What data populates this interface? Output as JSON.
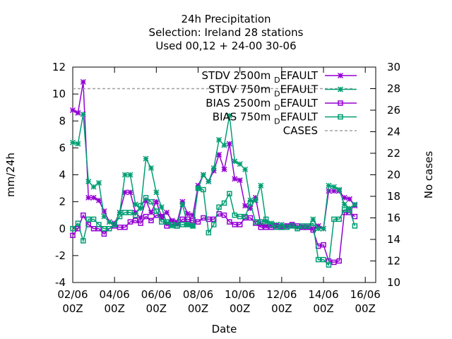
{
  "chart_data": {
    "type": "line",
    "title_lines": [
      "24h Precipitation",
      "Selection: Ireland      28 stations",
      "Used  00,12  + 24-00 30-06"
    ],
    "xlabel": "Date",
    "ylabel": "mm/24h",
    "y2label": "No cases",
    "xlim": [
      0,
      14.5
    ],
    "ylim": [
      -4,
      12
    ],
    "y2lim": [
      10,
      30
    ],
    "x_ticks": [
      {
        "v": 0,
        "l1": "02/06",
        "l2": "00Z"
      },
      {
        "v": 2,
        "l1": "04/06",
        "l2": "00Z"
      },
      {
        "v": 4,
        "l1": "06/06",
        "l2": "00Z"
      },
      {
        "v": 6,
        "l1": "08/06",
        "l2": "00Z"
      },
      {
        "v": 8,
        "l1": "10/06",
        "l2": "00Z"
      },
      {
        "v": 10,
        "l1": "12/06",
        "l2": "00Z"
      },
      {
        "v": 12,
        "l1": "14/06",
        "l2": "00Z"
      },
      {
        "v": 14,
        "l1": "16/06",
        "l2": "00Z"
      }
    ],
    "y_ticks": [
      -4,
      -2,
      0,
      2,
      4,
      6,
      8,
      10,
      12
    ],
    "y2_ticks": [
      10,
      12,
      14,
      16,
      18,
      20,
      22,
      24,
      26,
      28,
      30
    ],
    "legend_position": "top-right",
    "series": [
      {
        "name": "STDV 2500m_DEFAULT",
        "legend_main": "STDV 2500m",
        "legend_sub": "D",
        "legend_tail": "EFAULT",
        "color": "#9400d3",
        "marker": "star",
        "axis": "y",
        "x": [
          0,
          0.25,
          0.5,
          0.75,
          1,
          1.25,
          1.5,
          1.75,
          2,
          2.25,
          2.5,
          2.75,
          3,
          3.25,
          3.5,
          3.75,
          4,
          4.25,
          4.5,
          4.75,
          5,
          5.25,
          5.5,
          5.75,
          6,
          6.25,
          6.5,
          6.75,
          7,
          7.25,
          7.5,
          7.75,
          8,
          8.25,
          8.5,
          8.75,
          9,
          9.25,
          9.5,
          9.75,
          10,
          10.25,
          10.5,
          10.75,
          11,
          11.25,
          11.5,
          11.75,
          12,
          12.25,
          12.5,
          12.75,
          13,
          13.25,
          13.5
        ],
        "y": [
          8.8,
          8.6,
          10.9,
          2.3,
          2.3,
          2.1,
          1.3,
          0.5,
          0.4,
          1.2,
          2.7,
          2.7,
          1.2,
          0.8,
          2.1,
          1.2,
          2.0,
          0.9,
          1.2,
          0.6,
          0.5,
          2.0,
          1.1,
          1.0,
          3.2,
          4.0,
          3.5,
          4.3,
          5.5,
          4.4,
          6.3,
          3.7,
          3.6,
          1.7,
          1.5,
          2.3,
          0.3,
          0.2,
          0.2,
          0.2,
          0.1,
          0.2,
          0.3,
          0.1,
          0.1,
          0.1,
          0.0,
          0.2,
          0.0,
          2.8,
          2.8,
          2.8,
          2.3,
          2.2,
          1.7
        ]
      },
      {
        "name": "STDV 750m_DEFAULT",
        "legend_main": "STDV 750m",
        "legend_sub": "D",
        "legend_tail": "EFAULT",
        "color": "#009e73",
        "marker": "star",
        "axis": "y",
        "x": [
          0,
          0.25,
          0.5,
          0.75,
          1,
          1.25,
          1.5,
          1.75,
          2,
          2.25,
          2.5,
          2.75,
          3,
          3.25,
          3.5,
          3.75,
          4,
          4.25,
          4.5,
          4.75,
          5,
          5.25,
          5.5,
          5.75,
          6,
          6.25,
          6.5,
          6.75,
          7,
          7.25,
          7.5,
          7.75,
          8,
          8.25,
          8.5,
          8.75,
          9,
          9.25,
          9.5,
          9.75,
          10,
          10.25,
          10.5,
          10.75,
          11,
          11.25,
          11.5,
          11.75,
          12,
          12.25,
          12.5,
          12.75,
          13,
          13.25,
          13.5
        ],
        "y": [
          6.4,
          6.3,
          8.5,
          3.5,
          3.1,
          3.4,
          0.9,
          0.5,
          0.3,
          1.2,
          4.0,
          4.0,
          1.8,
          1.5,
          5.2,
          4.5,
          2.7,
          1.6,
          0.4,
          0.2,
          0.3,
          1.8,
          0.3,
          0.2,
          3.0,
          4.0,
          3.5,
          4.5,
          6.6,
          6.2,
          8.4,
          5.0,
          4.8,
          4.4,
          2.1,
          2.1,
          3.2,
          0.5,
          0.4,
          0.3,
          0.3,
          0.2,
          0.2,
          0.1,
          0.1,
          0.1,
          0.7,
          0.0,
          0.0,
          3.2,
          3.1,
          2.9,
          1.8,
          1.5,
          1.8
        ]
      },
      {
        "name": "BIAS 2500m_DEFAULT",
        "legend_main": "BIAS 2500m",
        "legend_sub": "D",
        "legend_tail": "EFAULT",
        "color": "#9400d3",
        "marker": "square",
        "axis": "y",
        "x": [
          0,
          0.25,
          0.5,
          0.75,
          1,
          1.25,
          1.5,
          1.75,
          2,
          2.25,
          2.5,
          2.75,
          3,
          3.25,
          3.5,
          3.75,
          4,
          4.25,
          4.5,
          4.75,
          5,
          5.25,
          5.5,
          5.75,
          6,
          6.25,
          6.5,
          6.75,
          7,
          7.25,
          7.5,
          7.75,
          8,
          8.25,
          8.5,
          8.75,
          9,
          9.25,
          9.5,
          9.75,
          10,
          10.25,
          10.5,
          10.75,
          11,
          11.25,
          11.5,
          11.75,
          12,
          12.25,
          12.5,
          12.75,
          13,
          13.25,
          13.5
        ],
        "y": [
          -0.5,
          0.0,
          1.0,
          0.3,
          0.0,
          0.0,
          -0.4,
          0.0,
          0.2,
          0.1,
          0.1,
          0.5,
          0.6,
          0.4,
          0.9,
          0.6,
          1.0,
          0.9,
          0.2,
          0.5,
          0.2,
          0.7,
          0.7,
          0.6,
          0.5,
          0.8,
          0.7,
          0.7,
          1.1,
          1.0,
          0.5,
          0.3,
          0.3,
          0.8,
          0.8,
          0.4,
          0.1,
          0.1,
          0.1,
          0.2,
          0.1,
          0.2,
          0.3,
          0.2,
          0.1,
          0.1,
          -0.1,
          -1.3,
          -1.2,
          -2.4,
          -2.5,
          -2.4,
          1.2,
          1.2,
          0.9
        ]
      },
      {
        "name": "BIAS 750m_DEFAULT",
        "legend_main": "BIAS 750m",
        "legend_sub": "D",
        "legend_tail": "EFAULT",
        "color": "#009e73",
        "marker": "square",
        "axis": "y",
        "x": [
          0,
          0.25,
          0.5,
          0.75,
          1,
          1.25,
          1.5,
          1.75,
          2,
          2.25,
          2.5,
          2.75,
          3,
          3.25,
          3.5,
          3.75,
          4,
          4.25,
          4.5,
          4.75,
          5,
          5.25,
          5.5,
          5.75,
          6,
          6.25,
          6.5,
          6.75,
          7,
          7.25,
          7.5,
          7.75,
          8,
          8.25,
          8.5,
          8.75,
          9,
          9.25,
          9.5,
          9.75,
          10,
          10.25,
          10.5,
          10.75,
          11,
          11.25,
          11.5,
          11.75,
          12,
          12.25,
          12.5,
          12.75,
          13,
          13.25,
          13.5
        ],
        "y": [
          0.0,
          0.4,
          -0.9,
          0.7,
          0.7,
          0.3,
          0.0,
          0.0,
          0.3,
          0.9,
          1.2,
          1.2,
          1.0,
          1.7,
          2.3,
          2.0,
          1.3,
          0.5,
          0.5,
          0.3,
          0.2,
          0.3,
          0.3,
          0.2,
          3.0,
          2.9,
          -0.3,
          0.3,
          1.6,
          1.9,
          2.6,
          1.0,
          0.9,
          0.9,
          1.9,
          0.5,
          0.5,
          0.7,
          0.3,
          0.1,
          0.1,
          0.1,
          0.2,
          0.0,
          0.2,
          0.2,
          0.4,
          -2.3,
          -2.3,
          -2.7,
          0.7,
          0.7,
          1.4,
          1.4,
          0.2
        ]
      },
      {
        "name": "CASES",
        "legend_main": "CASES",
        "legend_sub": "",
        "legend_tail": "",
        "color": "#a0a0a0",
        "marker": "none",
        "dashed": true,
        "axis": "y2",
        "x": [
          0,
          13.5
        ],
        "y": [
          28,
          28
        ]
      }
    ]
  }
}
